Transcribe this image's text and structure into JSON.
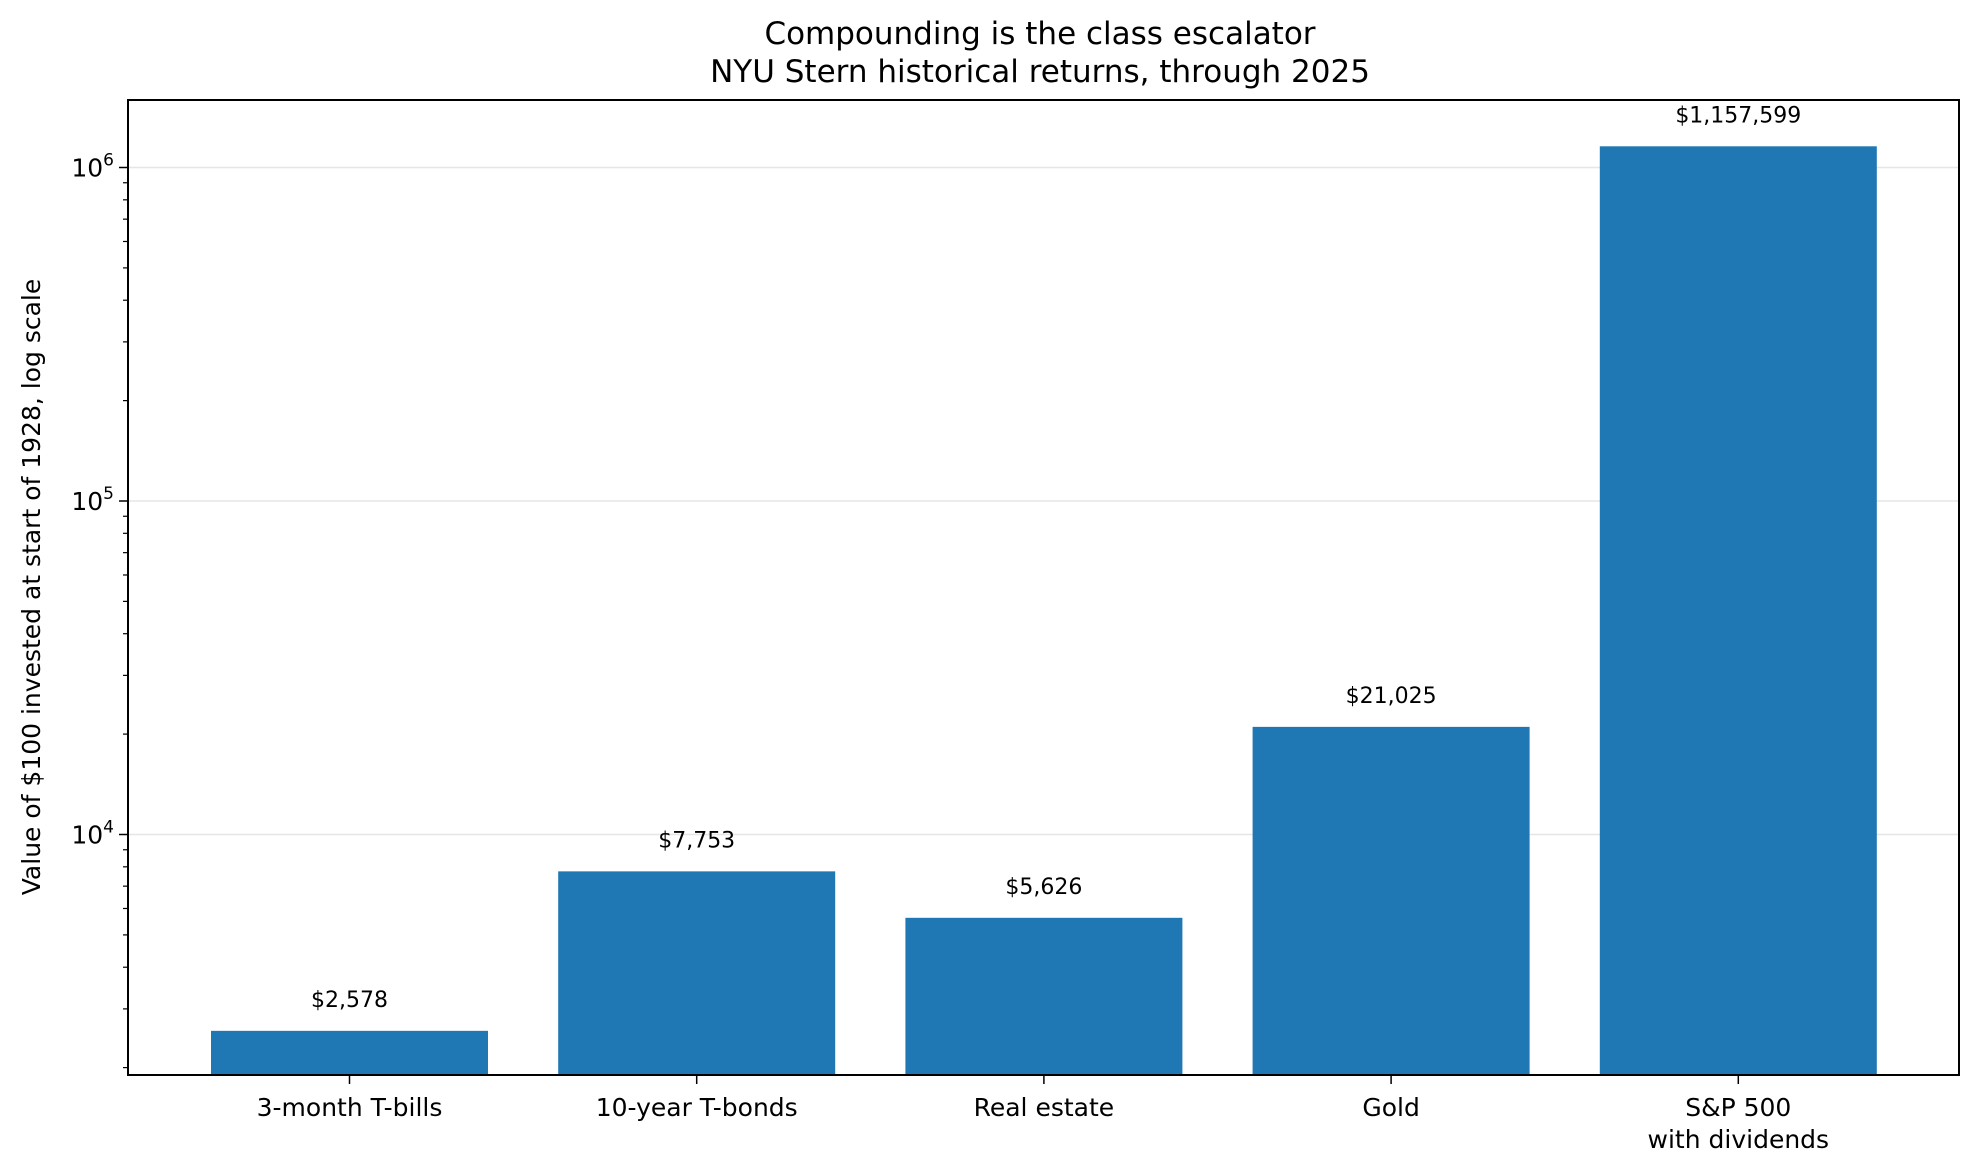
{
  "chart_data": {
    "type": "bar",
    "title": "Compounding is the class escalator",
    "subtitle": "NYU Stern historical returns, through 2025",
    "ylabel": "Value of $100 invested at start of 1928, log scale",
    "xlabel": "",
    "yscale": "log",
    "ylim": [
      1900,
      1600000
    ],
    "y_major_ticks": [
      {
        "value": 10000,
        "base": "10",
        "exp": "4"
      },
      {
        "value": 100000,
        "base": "10",
        "exp": "5"
      },
      {
        "value": 1000000,
        "base": "10",
        "exp": "6"
      }
    ],
    "grid": "horizontal major",
    "legend": "none",
    "bar_color": "#1f77b4",
    "categories": [
      {
        "line1": "3-month T-bills",
        "line2": ""
      },
      {
        "line1": "10-year T-bonds",
        "line2": ""
      },
      {
        "line1": "Real estate",
        "line2": ""
      },
      {
        "line1": "Gold",
        "line2": ""
      },
      {
        "line1": "S&P 500",
        "line2": "with dividends"
      }
    ],
    "values": [
      2578,
      7753,
      5626,
      21025,
      1157599
    ],
    "value_labels": [
      "$2,578",
      "$7,753",
      "$5,626",
      "$21,025",
      "$1,157,599"
    ]
  }
}
